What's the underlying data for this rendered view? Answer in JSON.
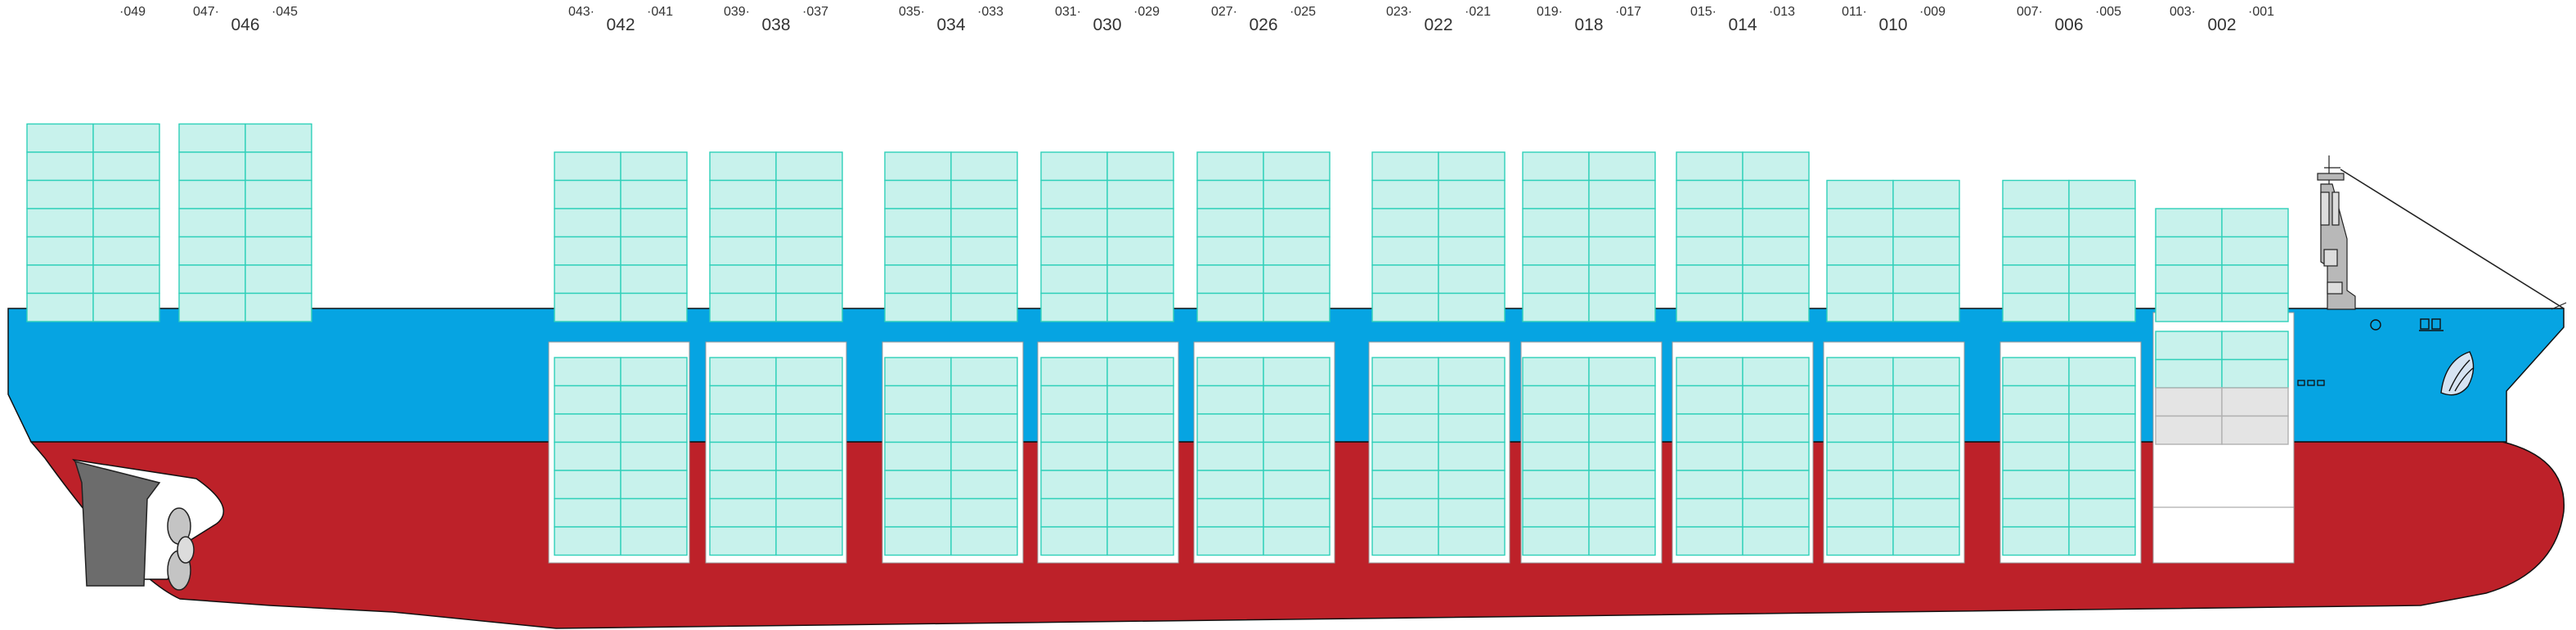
{
  "colors": {
    "hull_top": "#06a4e2",
    "hull_bottom": "#bd2129",
    "container_fill": "#c8f2ec",
    "container_stroke": "#2fd0b9",
    "rudder": "#6c6c6c",
    "bridge": "#b8b8b8",
    "hold_fill": "#ffffff",
    "empty_slot": "#e4e4e4"
  },
  "icons": [
    "propeller-icon",
    "rudder-icon",
    "anchor-icon",
    "mast-icon",
    "bulbous-bow"
  ],
  "bays": [
    {
      "name": "",
      "aft": "",
      "fwd": "049",
      "deck_tiers": 7,
      "hold_tiers": 0
    },
    {
      "name": "046",
      "aft": "047",
      "fwd": "045",
      "deck_tiers": 7,
      "hold_tiers": 0
    },
    {
      "name": "042",
      "aft": "043",
      "fwd": "041",
      "deck_tiers": 6,
      "hold_tiers": 7
    },
    {
      "name": "038",
      "aft": "039",
      "fwd": "037",
      "deck_tiers": 6,
      "hold_tiers": 7
    },
    {
      "name": "034",
      "aft": "035",
      "fwd": "033",
      "deck_tiers": 6,
      "hold_tiers": 7
    },
    {
      "name": "030",
      "aft": "031",
      "fwd": "029",
      "deck_tiers": 6,
      "hold_tiers": 7
    },
    {
      "name": "026",
      "aft": "027",
      "fwd": "025",
      "deck_tiers": 6,
      "hold_tiers": 7
    },
    {
      "name": "022",
      "aft": "023",
      "fwd": "021",
      "deck_tiers": 6,
      "hold_tiers": 7
    },
    {
      "name": "018",
      "aft": "019",
      "fwd": "017",
      "deck_tiers": 6,
      "hold_tiers": 7
    },
    {
      "name": "014",
      "aft": "015",
      "fwd": "013",
      "deck_tiers": 6,
      "hold_tiers": 7
    },
    {
      "name": "010",
      "aft": "011",
      "fwd": "009",
      "deck_tiers": 5,
      "hold_tiers": 7
    },
    {
      "name": "006",
      "aft": "007",
      "fwd": "005",
      "deck_tiers": 5,
      "hold_tiers": 7
    },
    {
      "name": "002",
      "aft": "003",
      "fwd": "001",
      "deck_tiers": 4,
      "hold_tiers": 4,
      "hold_empty_tiers": 2
    }
  ]
}
